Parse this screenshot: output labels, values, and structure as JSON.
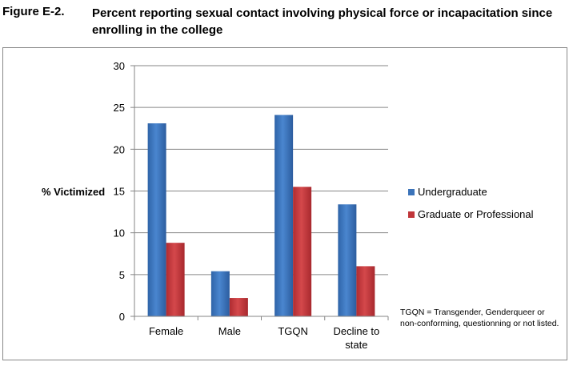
{
  "figure": {
    "label": "Figure E-2.",
    "title": "Percent reporting sexual contact involving physical force or incapacitation since enrolling in the college"
  },
  "chart_data": {
    "type": "bar",
    "categories": [
      "Female",
      "Male",
      "TGQN",
      "Decline to state"
    ],
    "category_lines": [
      [
        "Female"
      ],
      [
        "Male"
      ],
      [
        "TGQN"
      ],
      [
        "Decline to",
        "state"
      ]
    ],
    "series": [
      {
        "name": "Undergraduate",
        "values": [
          23.1,
          5.4,
          24.1,
          13.4
        ],
        "color": "#3b73b9"
      },
      {
        "name": "Graduate or Professional",
        "values": [
          8.8,
          2.2,
          15.5,
          6.0
        ],
        "color": "#c0363a"
      }
    ],
    "ylabel": "% Victimized",
    "xlabel": "",
    "ylim": [
      0,
      30
    ],
    "yticks": [
      0,
      5,
      10,
      15,
      20,
      25,
      30
    ],
    "grid": true,
    "legend": "right",
    "note": "TGQN = Transgender, Genderqueer or non-conforming, questionning or not listed."
  }
}
